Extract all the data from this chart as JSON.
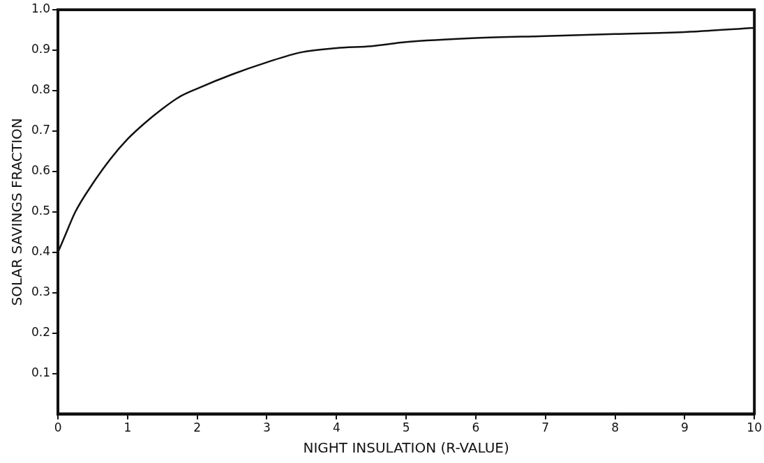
{
  "chart_data": {
    "type": "line",
    "xlabel": "NIGHT INSULATION (R-VALUE)",
    "ylabel": "SOLAR SAVINGS FRACTION",
    "x": [
      0,
      0.1,
      0.25,
      0.5,
      0.75,
      1,
      1.25,
      1.5,
      1.75,
      2,
      2.5,
      3,
      3.5,
      4,
      4.5,
      5,
      6,
      7,
      8,
      9,
      10
    ],
    "series": [
      {
        "color": "#111111",
        "values": [
          0.4,
          0.44,
          0.5,
          0.57,
          0.63,
          0.68,
          0.72,
          0.755,
          0.785,
          0.805,
          0.84,
          0.87,
          0.895,
          0.905,
          0.91,
          0.92,
          0.93,
          0.935,
          0.94,
          0.945,
          0.955
        ]
      }
    ],
    "xlim": [
      0,
      10
    ],
    "xticks": [
      0,
      1,
      2,
      3,
      4,
      5,
      6,
      7,
      8,
      9,
      10
    ],
    "ylim": [
      0,
      1
    ],
    "yticks": [
      0.1,
      0.2,
      0.3,
      0.4,
      0.5,
      0.6,
      0.7,
      0.8,
      0.9,
      {
        "value": 1,
        "label": "1.0"
      }
    ],
    "grid": false,
    "legend": false,
    "marker": "none",
    "line_style": "solid"
  }
}
